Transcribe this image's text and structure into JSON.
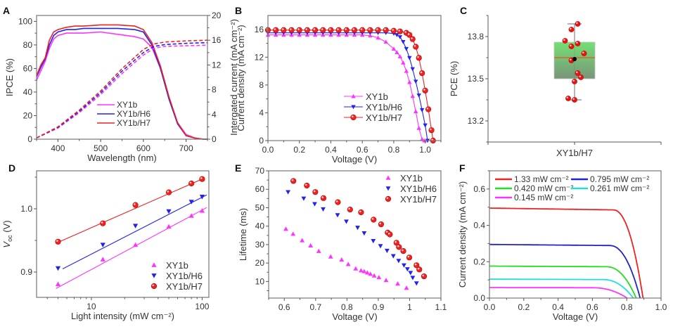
{
  "chart_data": [
    {
      "id": "A",
      "type": "line",
      "panel_label": "A",
      "xlabel": "Wavelength (nm)",
      "ylabel": "IPCE (%)",
      "y2label": "Intergated current (mA cm⁻²)",
      "xlim": [
        350,
        750
      ],
      "ylim": [
        0,
        105
      ],
      "y2lim": [
        0,
        20
      ],
      "xticks": [
        400,
        500,
        600,
        700
      ],
      "yticks": [
        0,
        20,
        40,
        60,
        80,
        100
      ],
      "y2ticks": [
        0,
        4,
        8,
        12,
        16,
        20
      ],
      "legend": [
        "XY1b",
        "XY1b/H6",
        "XY1b/H7"
      ],
      "legend_position": "center",
      "series": [
        {
          "name": "XY1b",
          "color": "#ff33ff",
          "axis": "left",
          "style": "solid",
          "x": [
            350,
            360,
            370,
            380,
            390,
            400,
            420,
            440,
            460,
            500,
            540,
            580,
            600,
            620,
            640,
            660,
            680,
            700,
            720,
            740,
            750
          ],
          "y": [
            50,
            58,
            66,
            77,
            85,
            88,
            90,
            90,
            90,
            91,
            89,
            87,
            85,
            78,
            60,
            35,
            14,
            4,
            1,
            0,
            0
          ]
        },
        {
          "name": "XY1b/H6",
          "color": "#2222ee",
          "axis": "left",
          "style": "solid",
          "x": [
            350,
            360,
            370,
            380,
            390,
            400,
            420,
            440,
            460,
            500,
            540,
            580,
            600,
            620,
            640,
            660,
            680,
            700,
            720,
            740,
            750
          ],
          "y": [
            53,
            61,
            68,
            80,
            88,
            91,
            93,
            93,
            94,
            94,
            94,
            93,
            91,
            80,
            60,
            34,
            13,
            3,
            1,
            0,
            0
          ]
        },
        {
          "name": "XY1b/H7",
          "color": "#ee2222",
          "axis": "left",
          "style": "solid",
          "x": [
            350,
            360,
            370,
            380,
            390,
            400,
            420,
            440,
            460,
            500,
            540,
            580,
            600,
            620,
            640,
            660,
            680,
            700,
            720,
            740,
            750
          ],
          "y": [
            54,
            63,
            69,
            84,
            91,
            93,
            95,
            96,
            96,
            97,
            97,
            96,
            93,
            82,
            62,
            36,
            14,
            3,
            1,
            0,
            0
          ]
        },
        {
          "name": "XY1b integrated",
          "color": "#ff33ff",
          "axis": "right",
          "style": "dashed",
          "x": [
            350,
            400,
            450,
            500,
            550,
            600,
            625,
            650,
            700,
            750
          ],
          "y": [
            0.2,
            1.8,
            4.3,
            7.2,
            10.6,
            13.6,
            14.7,
            15.0,
            15.1,
            15.2
          ]
        },
        {
          "name": "XY1b/H6 integrated",
          "color": "#2222ee",
          "axis": "right",
          "style": "dashed",
          "x": [
            350,
            400,
            450,
            500,
            550,
            600,
            625,
            650,
            700,
            750
          ],
          "y": [
            0.2,
            1.9,
            4.5,
            7.5,
            11.0,
            14.0,
            15.0,
            15.3,
            15.5,
            15.6
          ]
        },
        {
          "name": "XY1b/H7 integrated",
          "color": "#ee2222",
          "axis": "right",
          "style": "dashed",
          "x": [
            350,
            400,
            450,
            500,
            550,
            600,
            625,
            650,
            700,
            750
          ],
          "y": [
            0.2,
            2.0,
            4.7,
            7.8,
            11.4,
            14.5,
            15.4,
            15.7,
            15.9,
            16.0
          ]
        }
      ]
    },
    {
      "id": "B",
      "type": "line",
      "panel_label": "B",
      "xlabel": "Voltage (V)",
      "ylabel": "Current density (mA cm⁻²)",
      "xlim": [
        0,
        1.1
      ],
      "ylim": [
        0,
        18
      ],
      "xticks": [
        0.0,
        0.2,
        0.4,
        0.6,
        0.8,
        1.0
      ],
      "xticklabels": [
        "0.0",
        "0.2",
        "0.4",
        "0.6",
        "0.8",
        "1.0"
      ],
      "yticks": [
        0,
        4,
        8,
        12,
        16
      ],
      "legend": [
        "XY1b",
        "XY1b/H6",
        "XY1b/H7"
      ],
      "legend_position": "bottom-center",
      "series": [
        {
          "name": "XY1b",
          "color": "#ff33ff",
          "marker": "triangle-up",
          "x": [
            0,
            0.05,
            0.1,
            0.15,
            0.2,
            0.25,
            0.3,
            0.35,
            0.4,
            0.45,
            0.5,
            0.55,
            0.6,
            0.65,
            0.7,
            0.75,
            0.8,
            0.82,
            0.84,
            0.86,
            0.88,
            0.9,
            0.92,
            0.94,
            0.96,
            0.98,
            0.995
          ],
          "y": [
            15.2,
            15.2,
            15.2,
            15.2,
            15.2,
            15.2,
            15.2,
            15.2,
            15.2,
            15.2,
            15.2,
            15.2,
            15.2,
            15.1,
            14.8,
            14.2,
            13.2,
            12.7,
            12.1,
            11.2,
            10.0,
            8.4,
            6.4,
            4.2,
            1.8,
            0.2,
            0
          ]
        },
        {
          "name": "XY1b/H6",
          "color": "#2222ee",
          "marker": "triangle-down",
          "x": [
            0,
            0.05,
            0.1,
            0.15,
            0.2,
            0.25,
            0.3,
            0.35,
            0.4,
            0.45,
            0.5,
            0.55,
            0.6,
            0.65,
            0.7,
            0.75,
            0.8,
            0.82,
            0.84,
            0.86,
            0.88,
            0.9,
            0.92,
            0.94,
            0.96,
            0.98,
            1.0,
            1.015
          ],
          "y": [
            15.5,
            15.5,
            15.5,
            15.5,
            15.5,
            15.5,
            15.5,
            15.5,
            15.5,
            15.5,
            15.5,
            15.5,
            15.5,
            15.5,
            15.5,
            15.5,
            15.4,
            15.2,
            14.9,
            14.2,
            13.2,
            11.9,
            10.3,
            8.5,
            6.5,
            4.4,
            2.2,
            0
          ]
        },
        {
          "name": "XY1b/H7",
          "color": "#ee2222",
          "marker": "circle",
          "x": [
            0,
            0.05,
            0.1,
            0.15,
            0.2,
            0.25,
            0.3,
            0.35,
            0.4,
            0.45,
            0.5,
            0.55,
            0.6,
            0.65,
            0.7,
            0.75,
            0.8,
            0.84,
            0.88,
            0.9,
            0.92,
            0.94,
            0.96,
            0.98,
            1.0,
            1.02,
            1.04,
            1.05
          ],
          "y": [
            15.9,
            15.9,
            15.9,
            15.9,
            15.9,
            15.9,
            15.9,
            15.9,
            15.9,
            15.9,
            15.9,
            15.9,
            15.9,
            15.9,
            15.9,
            15.9,
            15.8,
            15.7,
            15.5,
            15.2,
            14.6,
            13.5,
            11.9,
            9.7,
            7.2,
            4.5,
            1.5,
            0
          ]
        }
      ]
    },
    {
      "id": "C",
      "type": "box",
      "panel_label": "C",
      "xlabel": "",
      "ylabel": "PCE (%)",
      "categories": [
        "XY1b/H7"
      ],
      "ylim": [
        13.05,
        13.95
      ],
      "yticks": [
        13.2,
        13.5,
        13.8
      ],
      "box": {
        "q1": 13.5,
        "median": 13.65,
        "q3": 13.76,
        "whisker_low": 13.35,
        "whisker_high": 13.89,
        "mean": 13.64,
        "box_color": "#66dd66",
        "median_color": "#ee5522"
      },
      "points": [
        13.89,
        13.85,
        13.77,
        13.75,
        13.73,
        13.68,
        13.63,
        13.54,
        13.51,
        13.48,
        13.36,
        13.35
      ],
      "points_jitter": [
        0.05,
        -0.05,
        -0.15,
        0.05,
        -0.05,
        0.15,
        -0.05,
        0.05,
        0.1,
        0.0,
        -0.1,
        0.0
      ],
      "point_color": "#ee1111",
      "mean_color": "#2255ee"
    },
    {
      "id": "D",
      "type": "scatter",
      "panel_label": "D",
      "xlabel": "Light intensity (mW cm⁻²)",
      "ylabel_main": "V",
      "ylabel_sub": "oc",
      "ylabel_unit": " (V)",
      "xscale": "log",
      "xlim": [
        3.2,
        115
      ],
      "ylim": [
        0.86,
        1.06
      ],
      "xticks": [
        10,
        100
      ],
      "yticks": [
        0.9,
        1.0
      ],
      "legend": [
        "XY1b",
        "XY1b/H6",
        "XY1b/H7"
      ],
      "legend_position": "bottom-right",
      "series": [
        {
          "name": "XY1b",
          "color": "#ff33ff",
          "marker": "triangle-up",
          "x": [
            5,
            12.7,
            25,
            50,
            80,
            100
          ],
          "y": [
            0.881,
            0.92,
            0.943,
            0.972,
            0.989,
            0.997
          ],
          "fit": [
            [
              4.8,
              0.874
            ],
            [
              110,
              1.002
            ]
          ]
        },
        {
          "name": "XY1b/H6",
          "color": "#2222ee",
          "marker": "triangle-down",
          "x": [
            5,
            12.7,
            25,
            50,
            80,
            100
          ],
          "y": [
            0.906,
            0.943,
            0.973,
            0.996,
            1.011,
            1.019
          ],
          "fit": [
            [
              5.5,
              0.905
            ],
            [
              110,
              1.022
            ]
          ]
        },
        {
          "name": "XY1b/H7",
          "color": "#ee2222",
          "marker": "circle",
          "x": [
            5,
            12.7,
            25,
            50,
            80,
            100
          ],
          "y": [
            0.948,
            0.977,
            1.006,
            1.026,
            1.04,
            1.047
          ],
          "fit": [
            [
              5,
              0.947
            ],
            [
              100,
              1.047
            ]
          ]
        }
      ]
    },
    {
      "id": "E",
      "type": "scatter",
      "panel_label": "E",
      "xlabel": "Voltage (V)",
      "ylabel": "Lifetime (ms)",
      "xlim": [
        0.55,
        1.1
      ],
      "ylim": [
        1,
        70
      ],
      "xticks": [
        0.6,
        0.7,
        0.8,
        0.9,
        1.0,
        1.1
      ],
      "yticks": [
        10,
        20,
        30,
        40,
        50,
        60,
        70
      ],
      "legend": [
        "XY1b",
        "XY1b/H6",
        "XY1b/H7"
      ],
      "legend_position": "top-right",
      "series": [
        {
          "name": "XY1b",
          "color": "#ff33ff",
          "marker": "triangle-up",
          "x": [
            0.605,
            0.628,
            0.657,
            0.684,
            0.71,
            0.748,
            0.783,
            0.804,
            0.828,
            0.845,
            0.855,
            0.865,
            0.875,
            0.887,
            0.902,
            0.925,
            0.962,
            0.99
          ],
          "y": [
            38.5,
            35.8,
            32.3,
            29.5,
            26.5,
            23.5,
            21.8,
            19.4,
            17.0,
            16.0,
            15.5,
            14.8,
            14.1,
            13.2,
            12.3,
            10.7,
            8.8,
            6.5
          ]
        },
        {
          "name": "XY1b/H6",
          "color": "#2222ee",
          "marker": "triangle-down",
          "x": [
            0.612,
            0.662,
            0.697,
            0.724,
            0.77,
            0.798,
            0.834,
            0.855,
            0.884,
            0.907,
            0.928,
            0.948,
            0.965,
            0.982,
            0.993,
            1.003,
            1.01,
            1.022
          ],
          "y": [
            58.5,
            55,
            52,
            49.2,
            46,
            42.5,
            39.2,
            36.2,
            32,
            29.2,
            26.7,
            23.8,
            21.2,
            18.8,
            16.7,
            14.7,
            12,
            9
          ]
        },
        {
          "name": "XY1b/H7",
          "color": "#ee2222",
          "marker": "circle",
          "x": [
            0.629,
            0.672,
            0.699,
            0.725,
            0.771,
            0.81,
            0.845,
            0.885,
            0.909,
            0.93,
            0.937,
            0.958,
            0.966,
            0.98,
            0.999,
            1.022,
            1.031,
            1.046
          ],
          "y": [
            64.5,
            62,
            58.5,
            55.2,
            53,
            49,
            47.5,
            43.5,
            41,
            36.5,
            35.5,
            31,
            28.7,
            26.5,
            23,
            18.8,
            16.5,
            12.8
          ]
        }
      ]
    },
    {
      "id": "F",
      "type": "line",
      "panel_label": "F",
      "xlabel": "Voltage (V)",
      "ylabel": "Current density (mA cm⁻²)",
      "xlim": [
        0,
        1.0
      ],
      "ylim": [
        0,
        0.7
      ],
      "xticks": [
        0.0,
        0.2,
        0.4,
        0.6,
        0.8,
        1.0
      ],
      "xticklabels": [
        "0.0",
        "0.2",
        "0.4",
        "0.6",
        "0.8",
        "1.0"
      ],
      "yticks": [
        0.0,
        0.2,
        0.4,
        0.6
      ],
      "yticklabels": [
        "0.0",
        "0.2",
        "0.4",
        "0.6"
      ],
      "legend": [
        "1.33 mW cm⁻²",
        "0.795 mW cm⁻²",
        "0.420 mW cm⁻²",
        "0.261 mW cm⁻²",
        "0.145 mW cm⁻²"
      ],
      "legend_position": "top",
      "series": [
        {
          "name": "1.33 mW cm⁻²",
          "color": "#ee2222",
          "jsc": 0.495,
          "voc": 0.895,
          "knee": 0.72
        },
        {
          "name": "0.795 mW cm⁻²",
          "color": "#2222cc",
          "jsc": 0.295,
          "voc": 0.878,
          "knee": 0.7
        },
        {
          "name": "0.420 mW cm⁻²",
          "color": "#22dd22",
          "jsc": 0.176,
          "voc": 0.855,
          "knee": 0.68
        },
        {
          "name": "0.261 mW cm⁻²",
          "color": "#22dddd",
          "jsc": 0.104,
          "voc": 0.838,
          "knee": 0.66
        },
        {
          "name": "0.145 mW cm⁻²",
          "color": "#ff33ff",
          "jsc": 0.058,
          "voc": 0.802,
          "knee": 0.6
        }
      ]
    }
  ]
}
